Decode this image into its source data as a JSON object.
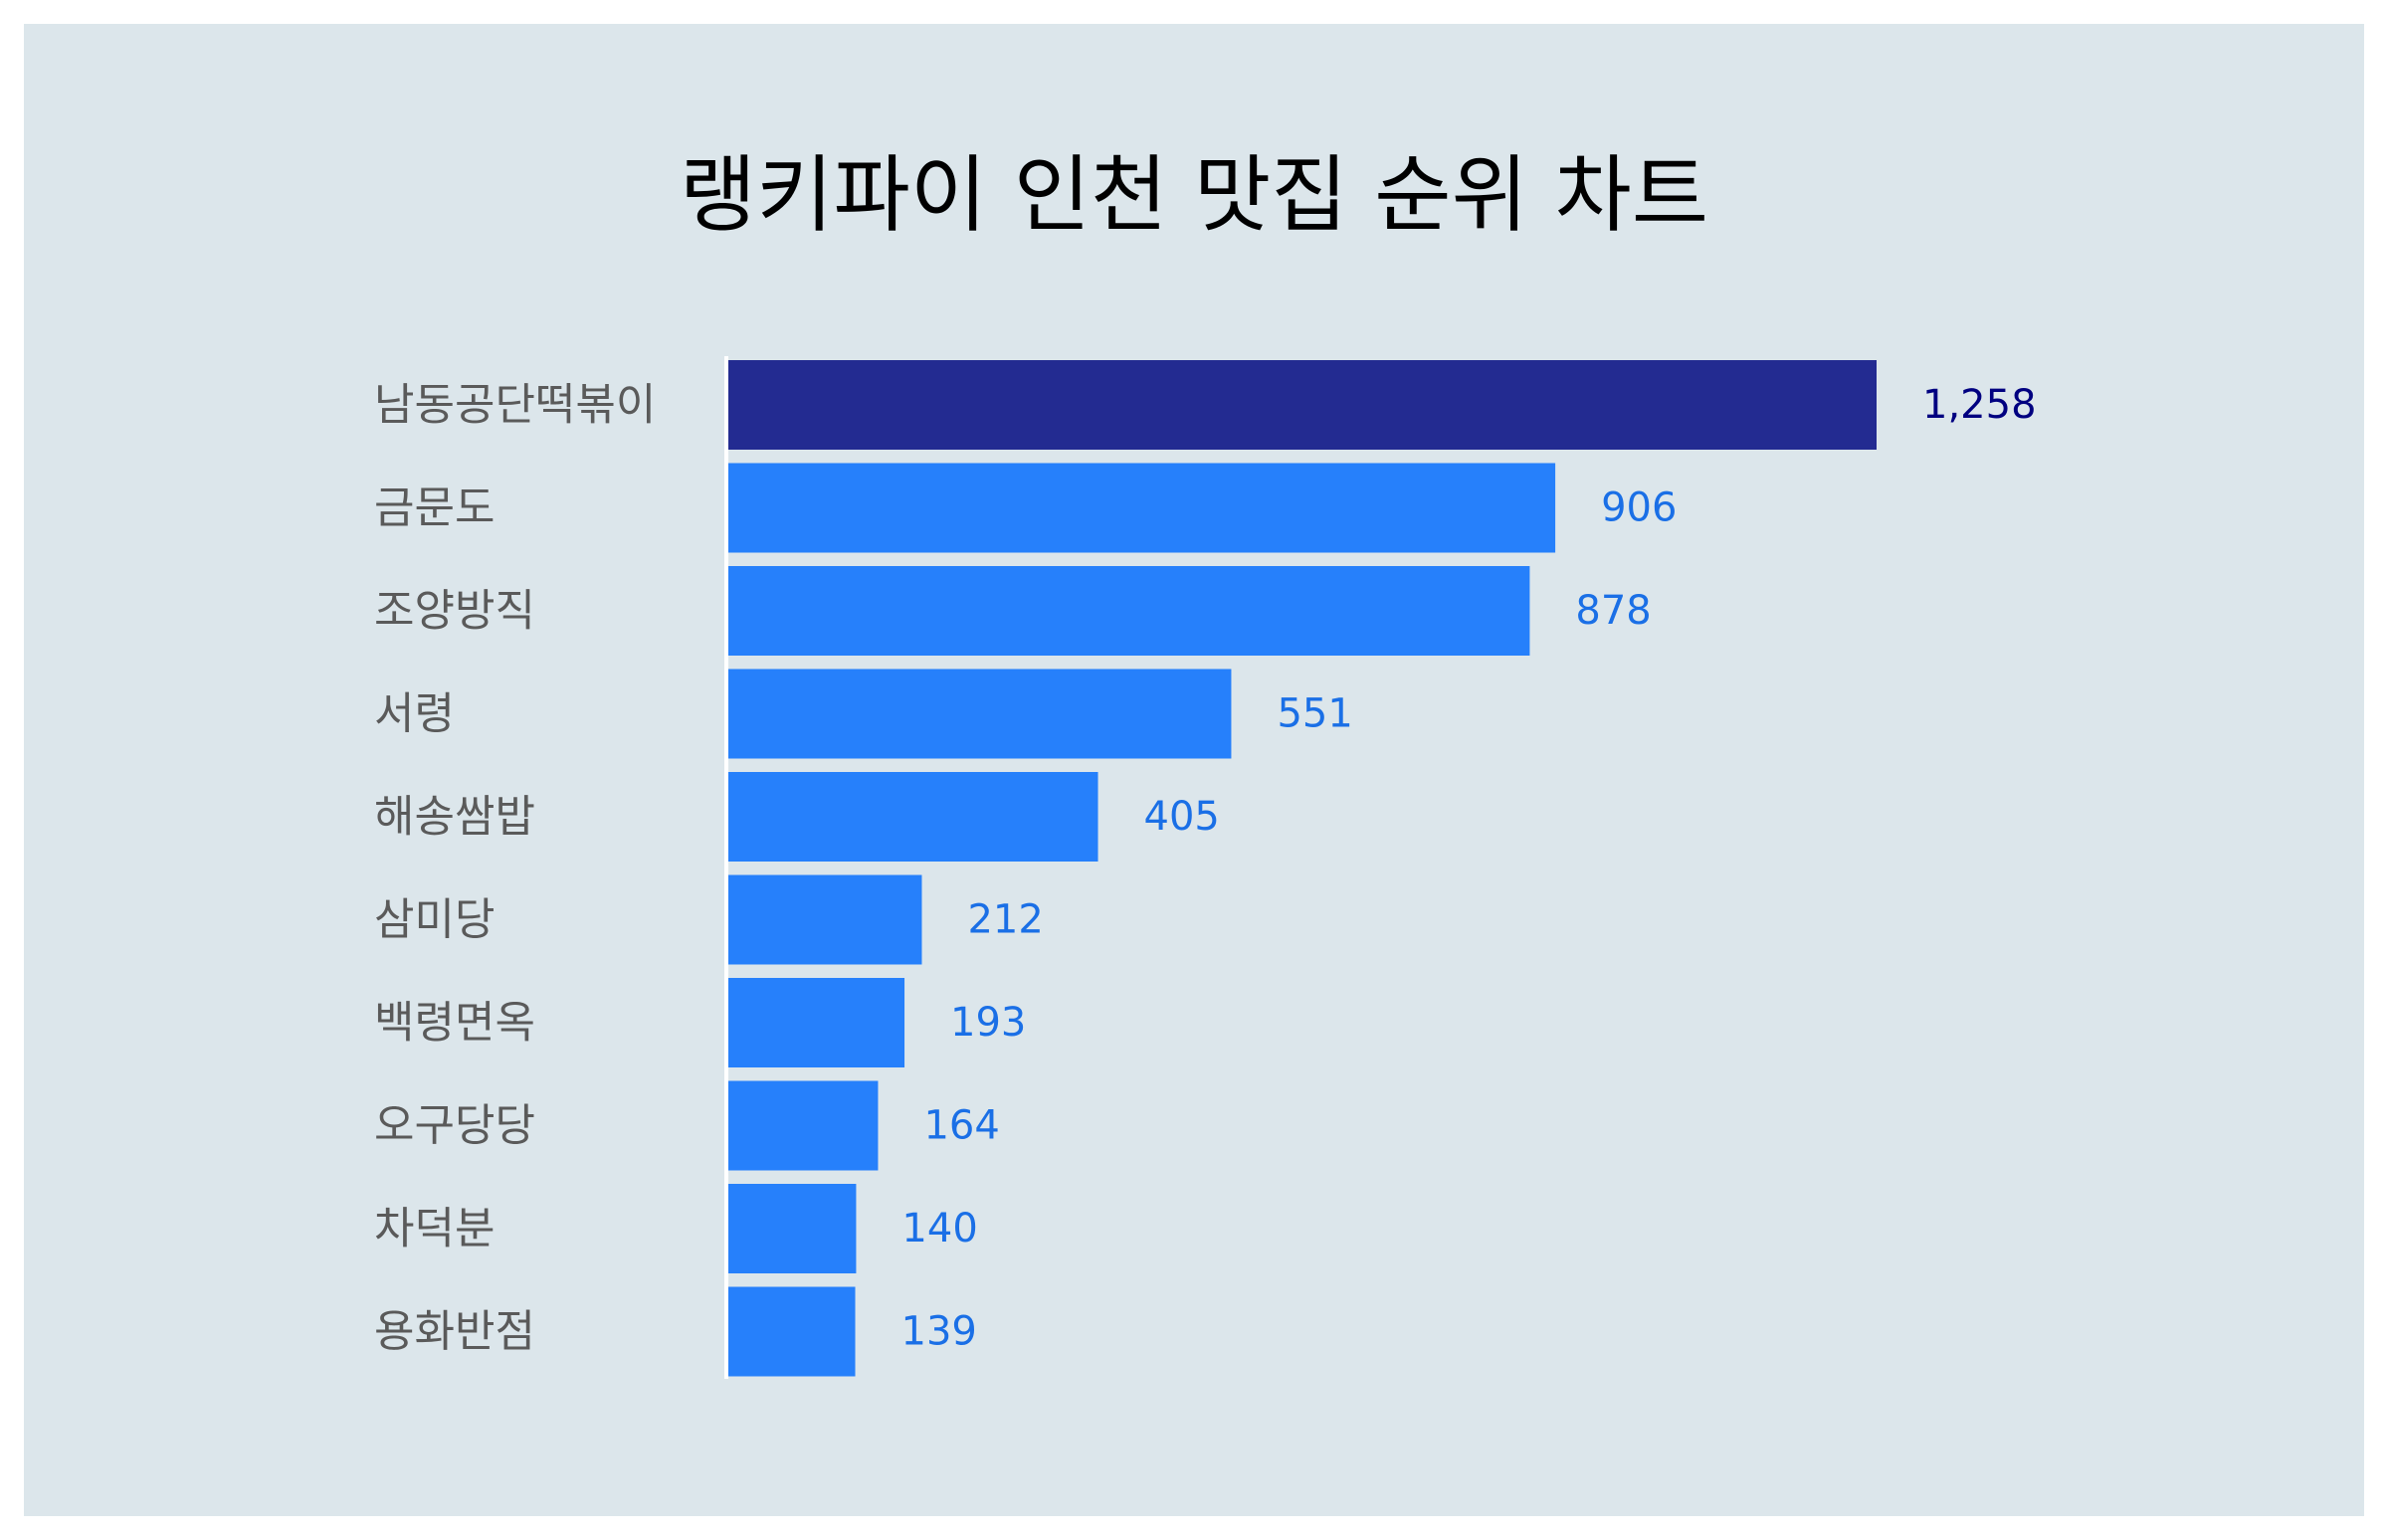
{
  "chart_data": {
    "type": "bar",
    "orientation": "horizontal",
    "title": "랭키파이 인천 맛집 순위 차트",
    "categories": [
      "남동공단떡볶이",
      "금문도",
      "조양방직",
      "서령",
      "해송쌈밥",
      "삼미당",
      "백령면옥",
      "오구당당",
      "차덕분",
      "용화반점"
    ],
    "values": [
      1258,
      906,
      878,
      551,
      405,
      212,
      193,
      164,
      140,
      139
    ],
    "value_labels": [
      "1,258",
      "906",
      "878",
      "551",
      "405",
      "212",
      "193",
      "164",
      "140",
      "139"
    ],
    "xlim": [
      0,
      1258
    ],
    "grid": false,
    "legend": "none",
    "colors": {
      "highlight_bar": "#232b91",
      "bar": "#2680fb",
      "highlight_label": "#000080",
      "label": "#1a6fe6"
    }
  }
}
